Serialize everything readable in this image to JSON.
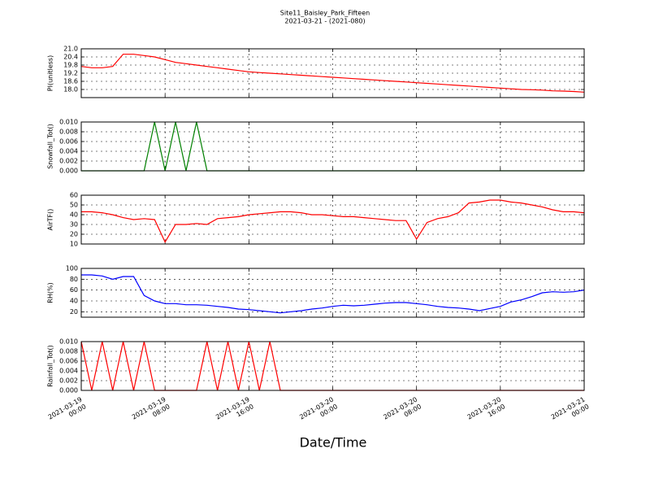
{
  "title": "Site11_Baisley_Park_Fifteen",
  "subtitle": "2021-03-21 - (2021-080)",
  "xlabel": "Date/Time",
  "chart_data": [
    {
      "type": "line",
      "ylabel": "PI(unitless)",
      "color": "#ff0000",
      "ylim": [
        17.4,
        21.0
      ],
      "yticks": [
        {
          "value": 18.0,
          "label": "18.0"
        },
        18.6,
        19.2,
        19.8,
        20.4,
        {
          "value": 21.0,
          "label": "21.0"
        }
      ],
      "x": [
        "2021-03-19 00:00",
        "2021-03-19 01:00",
        "2021-03-19 02:00",
        "2021-03-19 03:00",
        "2021-03-19 04:00",
        "2021-03-19 05:00",
        "2021-03-19 06:00",
        "2021-03-19 07:00",
        "2021-03-19 08:00",
        "2021-03-19 09:00",
        "2021-03-19 10:00",
        "2021-03-19 11:00",
        "2021-03-19 12:00",
        "2021-03-19 13:00",
        "2021-03-19 14:00",
        "2021-03-19 15:00",
        "2021-03-19 16:00",
        "2021-03-19 17:00",
        "2021-03-19 18:00",
        "2021-03-19 19:00",
        "2021-03-19 20:00",
        "2021-03-19 21:00",
        "2021-03-19 22:00",
        "2021-03-19 23:00",
        "2021-03-20 00:00",
        "2021-03-20 01:00",
        "2021-03-20 02:00",
        "2021-03-20 03:00",
        "2021-03-20 04:00",
        "2021-03-20 05:00",
        "2021-03-20 06:00",
        "2021-03-20 07:00",
        "2021-03-20 08:00",
        "2021-03-20 09:00",
        "2021-03-20 10:00",
        "2021-03-20 11:00",
        "2021-03-20 12:00",
        "2021-03-20 13:00",
        "2021-03-20 14:00",
        "2021-03-20 15:00",
        "2021-03-20 16:00",
        "2021-03-20 17:00",
        "2021-03-20 18:00",
        "2021-03-20 19:00",
        "2021-03-20 20:00",
        "2021-03-20 21:00",
        "2021-03-20 22:00",
        "2021-03-20 23:00",
        "2021-03-21 00:00"
      ],
      "values": [
        19.7,
        19.6,
        19.6,
        19.7,
        20.6,
        20.6,
        20.5,
        20.4,
        20.2,
        20.0,
        19.9,
        19.8,
        19.7,
        19.6,
        19.5,
        19.4,
        19.3,
        19.25,
        19.2,
        19.15,
        19.1,
        19.05,
        19.0,
        18.95,
        18.9,
        18.85,
        18.8,
        18.75,
        18.7,
        18.65,
        18.6,
        18.55,
        18.5,
        18.45,
        18.4,
        18.35,
        18.3,
        18.25,
        18.2,
        18.15,
        18.1,
        18.05,
        18.0,
        17.98,
        17.95,
        17.9,
        17.88,
        17.85,
        17.8
      ]
    },
    {
      "type": "line",
      "ylabel": "Snowfall_Tot()",
      "color": "#008000",
      "ylim": [
        0,
        0.01
      ],
      "yticks": [
        {
          "value": 0,
          "label": "0.000"
        },
        {
          "value": 0.002,
          "label": "0.002"
        },
        {
          "value": 0.004,
          "label": "0.004"
        },
        {
          "value": 0.006,
          "label": "0.006"
        },
        {
          "value": 0.008,
          "label": "0.008"
        },
        {
          "value": 0.01,
          "label": "0.010"
        }
      ],
      "x": [
        "2021-03-19 00:00",
        "2021-03-19 01:00",
        "2021-03-19 02:00",
        "2021-03-19 03:00",
        "2021-03-19 04:00",
        "2021-03-19 05:00",
        "2021-03-19 06:00",
        "2021-03-19 07:00",
        "2021-03-19 08:00",
        "2021-03-19 09:00",
        "2021-03-19 10:00",
        "2021-03-19 11:00",
        "2021-03-19 12:00",
        "2021-03-19 13:00",
        "2021-03-19 14:00",
        "2021-03-19 15:00",
        "2021-03-19 16:00",
        "2021-03-19 17:00",
        "2021-03-19 18:00",
        "2021-03-19 19:00",
        "2021-03-19 20:00",
        "2021-03-19 21:00",
        "2021-03-19 22:00",
        "2021-03-19 23:00",
        "2021-03-20 00:00",
        "2021-03-20 01:00",
        "2021-03-20 02:00",
        "2021-03-20 03:00",
        "2021-03-20 04:00",
        "2021-03-20 05:00",
        "2021-03-20 06:00",
        "2021-03-20 07:00",
        "2021-03-20 08:00",
        "2021-03-20 09:00",
        "2021-03-20 10:00",
        "2021-03-20 11:00",
        "2021-03-20 12:00",
        "2021-03-20 13:00",
        "2021-03-20 14:00",
        "2021-03-20 15:00",
        "2021-03-20 16:00",
        "2021-03-20 17:00",
        "2021-03-20 18:00",
        "2021-03-20 19:00",
        "2021-03-20 20:00",
        "2021-03-20 21:00",
        "2021-03-20 22:00",
        "2021-03-20 23:00",
        "2021-03-21 00:00"
      ],
      "values": [
        0,
        0,
        0,
        0,
        0,
        0,
        0,
        0.01,
        0,
        0.01,
        0,
        0.01,
        0,
        0,
        0,
        0,
        0,
        0,
        0,
        0,
        0,
        0,
        0,
        0,
        0,
        0,
        0,
        0,
        0,
        0,
        0,
        0,
        0,
        0,
        0,
        0,
        0,
        0,
        0,
        0,
        0,
        0,
        0,
        0,
        0,
        0,
        0,
        0,
        0
      ]
    },
    {
      "type": "line",
      "ylabel": "AirTF()",
      "color": "#ff0000",
      "ylim": [
        10,
        60
      ],
      "yticks": [
        10,
        20,
        30,
        40,
        50,
        60
      ],
      "x": [
        "2021-03-19 00:00",
        "2021-03-19 01:00",
        "2021-03-19 02:00",
        "2021-03-19 03:00",
        "2021-03-19 04:00",
        "2021-03-19 05:00",
        "2021-03-19 06:00",
        "2021-03-19 07:00",
        "2021-03-19 08:00",
        "2021-03-19 09:00",
        "2021-03-19 10:00",
        "2021-03-19 11:00",
        "2021-03-19 12:00",
        "2021-03-19 13:00",
        "2021-03-19 14:00",
        "2021-03-19 15:00",
        "2021-03-19 16:00",
        "2021-03-19 17:00",
        "2021-03-19 18:00",
        "2021-03-19 19:00",
        "2021-03-19 20:00",
        "2021-03-19 21:00",
        "2021-03-19 22:00",
        "2021-03-19 23:00",
        "2021-03-20 00:00",
        "2021-03-20 01:00",
        "2021-03-20 02:00",
        "2021-03-20 03:00",
        "2021-03-20 04:00",
        "2021-03-20 05:00",
        "2021-03-20 06:00",
        "2021-03-20 07:00",
        "2021-03-20 08:00",
        "2021-03-20 09:00",
        "2021-03-20 10:00",
        "2021-03-20 11:00",
        "2021-03-20 12:00",
        "2021-03-20 13:00",
        "2021-03-20 14:00",
        "2021-03-20 15:00",
        "2021-03-20 16:00",
        "2021-03-20 17:00",
        "2021-03-20 18:00",
        "2021-03-20 19:00",
        "2021-03-20 20:00",
        "2021-03-20 21:00",
        "2021-03-20 22:00",
        "2021-03-20 23:00",
        "2021-03-21 00:00"
      ],
      "values": [
        43,
        43,
        42,
        40,
        37,
        35,
        36,
        35,
        12,
        30,
        30,
        31,
        30,
        36,
        37,
        38,
        40,
        41,
        42,
        43,
        43,
        42,
        40,
        40,
        39,
        38,
        38,
        37,
        36,
        35,
        34,
        34,
        15,
        32,
        36,
        38,
        42,
        52,
        53,
        55,
        55,
        53,
        52,
        50,
        48,
        45,
        43,
        43,
        42
      ]
    },
    {
      "type": "line",
      "ylabel": "RH(%)",
      "color": "#0000ff",
      "ylim": [
        10,
        100
      ],
      "yticks": [
        20,
        40,
        60,
        80,
        100
      ],
      "x": [
        "2021-03-19 00:00",
        "2021-03-19 01:00",
        "2021-03-19 02:00",
        "2021-03-19 03:00",
        "2021-03-19 04:00",
        "2021-03-19 05:00",
        "2021-03-19 06:00",
        "2021-03-19 07:00",
        "2021-03-19 08:00",
        "2021-03-19 09:00",
        "2021-03-19 10:00",
        "2021-03-19 11:00",
        "2021-03-19 12:00",
        "2021-03-19 13:00",
        "2021-03-19 14:00",
        "2021-03-19 15:00",
        "2021-03-19 16:00",
        "2021-03-19 17:00",
        "2021-03-19 18:00",
        "2021-03-19 19:00",
        "2021-03-19 20:00",
        "2021-03-19 21:00",
        "2021-03-19 22:00",
        "2021-03-19 23:00",
        "2021-03-20 00:00",
        "2021-03-20 01:00",
        "2021-03-20 02:00",
        "2021-03-20 03:00",
        "2021-03-20 04:00",
        "2021-03-20 05:00",
        "2021-03-20 06:00",
        "2021-03-20 07:00",
        "2021-03-20 08:00",
        "2021-03-20 09:00",
        "2021-03-20 10:00",
        "2021-03-20 11:00",
        "2021-03-20 12:00",
        "2021-03-20 13:00",
        "2021-03-20 14:00",
        "2021-03-20 15:00",
        "2021-03-20 16:00",
        "2021-03-20 17:00",
        "2021-03-20 18:00",
        "2021-03-20 19:00",
        "2021-03-20 20:00",
        "2021-03-20 21:00",
        "2021-03-20 22:00",
        "2021-03-20 23:00",
        "2021-03-21 00:00"
      ],
      "values": [
        88,
        88,
        86,
        80,
        85,
        85,
        50,
        40,
        35,
        35,
        33,
        33,
        32,
        30,
        28,
        25,
        24,
        22,
        20,
        18,
        20,
        22,
        25,
        27,
        30,
        32,
        31,
        32,
        34,
        36,
        37,
        37,
        35,
        33,
        30,
        28,
        27,
        25,
        22,
        26,
        30,
        38,
        42,
        48,
        55,
        57,
        56,
        57,
        60
      ]
    },
    {
      "type": "line",
      "ylabel": "Rainfall_Tot()",
      "color": "#ff0000",
      "ylim": [
        0,
        0.01
      ],
      "yticks": [
        {
          "value": 0,
          "label": "0.000"
        },
        {
          "value": 0.002,
          "label": "0.002"
        },
        {
          "value": 0.004,
          "label": "0.004"
        },
        {
          "value": 0.006,
          "label": "0.006"
        },
        {
          "value": 0.008,
          "label": "0.008"
        },
        {
          "value": 0.01,
          "label": "0.010"
        }
      ],
      "xlim": [
        "2021-03-19 00:00",
        "2021-03-21 00:00"
      ],
      "xticks": [
        "2021-03-19 00:00",
        "2021-03-19 08:00",
        "2021-03-19 16:00",
        "2021-03-20 00:00",
        "2021-03-20 08:00",
        "2021-03-20 16:00",
        "2021-03-21 00:00"
      ],
      "x": [
        "2021-03-19 00:00",
        "2021-03-19 01:00",
        "2021-03-19 02:00",
        "2021-03-19 03:00",
        "2021-03-19 04:00",
        "2021-03-19 05:00",
        "2021-03-19 06:00",
        "2021-03-19 07:00",
        "2021-03-19 08:00",
        "2021-03-19 09:00",
        "2021-03-19 10:00",
        "2021-03-19 11:00",
        "2021-03-19 12:00",
        "2021-03-19 13:00",
        "2021-03-19 14:00",
        "2021-03-19 15:00",
        "2021-03-19 16:00",
        "2021-03-19 17:00",
        "2021-03-19 18:00",
        "2021-03-19 19:00",
        "2021-03-19 20:00",
        "2021-03-19 21:00",
        "2021-03-19 22:00",
        "2021-03-19 23:00",
        "2021-03-20 00:00",
        "2021-03-20 01:00",
        "2021-03-20 02:00",
        "2021-03-20 03:00",
        "2021-03-20 04:00",
        "2021-03-20 05:00",
        "2021-03-20 06:00",
        "2021-03-20 07:00",
        "2021-03-20 08:00",
        "2021-03-20 09:00",
        "2021-03-20 10:00",
        "2021-03-20 11:00",
        "2021-03-20 12:00",
        "2021-03-20 13:00",
        "2021-03-20 14:00",
        "2021-03-20 15:00",
        "2021-03-20 16:00",
        "2021-03-20 17:00",
        "2021-03-20 18:00",
        "2021-03-20 19:00",
        "2021-03-20 20:00",
        "2021-03-20 21:00",
        "2021-03-20 22:00",
        "2021-03-20 23:00",
        "2021-03-21 00:00"
      ],
      "values": [
        0.01,
        0,
        0.01,
        0,
        0.01,
        0,
        0.01,
        0,
        0,
        0,
        0,
        0,
        0.01,
        0,
        0.01,
        0,
        0.01,
        0,
        0.01,
        0,
        0,
        0,
        0,
        0,
        0,
        0,
        0,
        0,
        0,
        0,
        0,
        0,
        0,
        0,
        0,
        0,
        0,
        0,
        0,
        0,
        0,
        0,
        0,
        0,
        0,
        0,
        0,
        0,
        0
      ]
    }
  ]
}
